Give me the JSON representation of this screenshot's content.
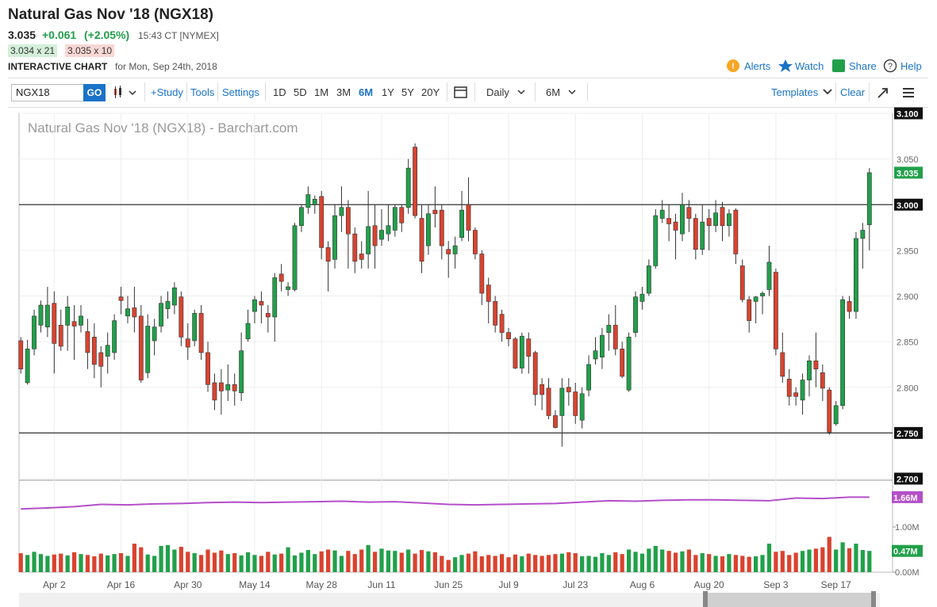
{
  "header": {
    "title": "Natural Gas Nov '18 (NGX18)",
    "last": "3.035",
    "change": "+0.061",
    "change_pct": "(+2.05%)",
    "time": "15:43 CT [NYMEX]",
    "bid": "3.034 x 21",
    "ask": "3.035 x 10",
    "chart_label": "INTERACTIVE CHART",
    "chart_date": "for Mon, Sep 24th, 2018",
    "links": [
      "Alerts",
      "Watch",
      "Share",
      "Help"
    ]
  },
  "toolbar": {
    "symbol": "NGX18",
    "go": "GO",
    "study": "+Study",
    "tools": "Tools",
    "settings": "Settings",
    "ranges": [
      "1D",
      "5D",
      "1M",
      "3M",
      "6M",
      "1Y",
      "5Y",
      "20Y"
    ],
    "interval": "Daily",
    "period": "6M",
    "templates": "Templates",
    "clear": "Clear"
  },
  "chart_data": {
    "type": "candlestick",
    "title": "Natural Gas Nov '18 (NGX18) - Barchart.com",
    "up_color": "#21a04a",
    "down_color": "#d9432f",
    "grid": true,
    "xlim": [
      -0.5,
      127.5
    ],
    "xticks": [
      {
        "value": 5,
        "label": "Apr 2"
      },
      {
        "value": 15,
        "label": "Apr 16"
      },
      {
        "value": 25,
        "label": "Apr 30"
      },
      {
        "value": 35,
        "label": "May 14"
      },
      {
        "value": 45,
        "label": "May 28"
      },
      {
        "value": 54,
        "label": "Jun 11"
      },
      {
        "value": 64,
        "label": "Jun 25"
      },
      {
        "value": 73,
        "label": "Jul 9"
      },
      {
        "value": 83,
        "label": "Jul 23"
      },
      {
        "value": 93,
        "label": "Aug 6"
      },
      {
        "value": 103,
        "label": "Aug 20"
      },
      {
        "value": 113,
        "label": "Sep 3"
      },
      {
        "value": 122,
        "label": "Sep 17"
      }
    ],
    "ylim": [
      2.7,
      3.1
    ],
    "yticks": [
      {
        "value": 3.1,
        "label": "3.100"
      },
      {
        "value": 3.05,
        "label": "3.050"
      },
      {
        "value": 3.0,
        "label": "3.000"
      },
      {
        "value": 2.95,
        "label": "2.950"
      },
      {
        "value": 2.9,
        "label": "2.900"
      },
      {
        "value": 2.85,
        "label": "2.850"
      },
      {
        "value": 2.8,
        "label": "2.800"
      },
      {
        "value": 2.75,
        "label": "2.750"
      },
      {
        "value": 2.7,
        "label": "2.700"
      }
    ],
    "hlines": [
      3.0,
      2.75
    ],
    "last_label": "3.035",
    "open": [
      2.851,
      2.805,
      2.842,
      2.868,
      2.866,
      2.892,
      2.868,
      2.868,
      2.872,
      2.868,
      2.861,
      2.855,
      2.838,
      2.834,
      2.838,
      2.899,
      2.878,
      2.887,
      2.878,
      2.816,
      2.851,
      2.867,
      2.886,
      2.89,
      2.899,
      2.853,
      2.851,
      2.881,
      2.838,
      2.805,
      2.805,
      2.797,
      2.803,
      2.794,
      2.853,
      2.883,
      2.894,
      2.881,
      2.877,
      2.924,
      2.907,
      2.907,
      2.977,
      2.997,
      3.0,
      3.009,
      2.953,
      2.94,
      2.988,
      2.997,
      2.968,
      2.946,
      2.946,
      2.977,
      2.962,
      2.968,
      2.972,
      2.997,
      2.997,
      3.063,
      2.985,
      2.955,
      2.994,
      2.994,
      2.951,
      2.946,
      2.964,
      3.0,
      2.972,
      2.946,
      2.912,
      2.894,
      2.88,
      2.86,
      2.853,
      2.821,
      2.853,
      2.838,
      2.803,
      2.799,
      2.769,
      2.769,
      2.8,
      2.795,
      2.764,
      2.797,
      2.831,
      2.833,
      2.86,
      2.868,
      2.842,
      2.797,
      2.86,
      2.894,
      2.903,
      2.933,
      2.985,
      2.985,
      2.981,
      2.968,
      2.997,
      2.985,
      2.951,
      2.985,
      2.977,
      2.997,
      2.977,
      2.994,
      2.933,
      2.896,
      2.894,
      2.9,
      2.907,
      2.926,
      2.838,
      2.809,
      2.794,
      2.786,
      2.808,
      2.829,
      2.816,
      2.797,
      2.76,
      2.78,
      2.894,
      2.883,
      2.963,
      2.978
    ],
    "high": [
      2.855,
      2.852,
      2.885,
      2.895,
      2.91,
      2.905,
      2.885,
      2.9,
      2.89,
      2.89,
      2.875,
      2.87,
      2.845,
      2.86,
      2.88,
      2.91,
      2.9,
      2.91,
      2.89,
      2.88,
      2.875,
      2.9,
      2.905,
      2.915,
      2.905,
      2.87,
      2.885,
      2.89,
      2.85,
      2.815,
      2.82,
      2.825,
      2.815,
      2.86,
      2.885,
      2.9,
      2.905,
      2.89,
      2.925,
      2.935,
      2.915,
      2.98,
      3.0,
      3.02,
      3.01,
      3.015,
      2.96,
      3.0,
      3.02,
      3.005,
      2.975,
      2.96,
      3.015,
      3.0,
      2.995,
      3.0,
      3.0,
      3.0,
      3.05,
      3.067,
      3.0,
      3.0,
      3.02,
      3.0,
      2.96,
      2.965,
      3.015,
      3.03,
      2.975,
      2.95,
      2.92,
      2.9,
      2.885,
      2.865,
      2.855,
      2.86,
      2.86,
      2.84,
      2.81,
      2.81,
      2.775,
      2.81,
      2.81,
      2.805,
      2.8,
      2.835,
      2.855,
      2.865,
      2.88,
      2.89,
      2.85,
      2.86,
      2.905,
      2.91,
      2.94,
      2.995,
      3.005,
      3.0,
      2.99,
      3.013,
      3.005,
      2.99,
      3.0,
      2.995,
      3.005,
      3.003,
      2.995,
      2.996,
      2.94,
      2.9,
      2.9,
      2.905,
      2.955,
      2.93,
      2.86,
      2.82,
      2.8,
      2.815,
      2.835,
      2.86,
      2.825,
      2.8,
      2.785,
      2.9,
      2.9,
      2.97,
      2.98,
      3.04
    ],
    "low": [
      2.815,
      2.803,
      2.835,
      2.86,
      2.855,
      2.815,
      2.84,
      2.84,
      2.83,
      2.86,
      2.82,
      2.81,
      2.8,
      2.815,
      2.83,
      2.88,
      2.87,
      2.86,
      2.805,
      2.81,
      2.835,
      2.86,
      2.875,
      2.88,
      2.845,
      2.83,
      2.845,
      2.83,
      2.795,
      2.775,
      2.77,
      2.785,
      2.78,
      2.785,
      2.85,
      2.87,
      2.87,
      2.86,
      2.85,
      2.905,
      2.9,
      2.905,
      2.97,
      2.99,
      2.99,
      2.94,
      2.905,
      2.93,
      2.97,
      2.93,
      2.925,
      2.93,
      2.93,
      2.93,
      2.955,
      2.96,
      2.965,
      2.97,
      2.99,
      2.985,
      2.925,
      2.945,
      2.975,
      2.94,
      2.92,
      2.93,
      2.96,
      2.96,
      2.94,
      2.89,
      2.87,
      2.86,
      2.85,
      2.845,
      2.82,
      2.815,
      2.815,
      2.78,
      2.775,
      2.765,
      2.755,
      2.735,
      2.78,
      2.76,
      2.755,
      2.79,
      2.825,
      2.82,
      2.84,
      2.835,
      2.81,
      2.795,
      2.855,
      2.885,
      2.9,
      2.93,
      2.98,
      2.96,
      2.94,
      2.96,
      2.97,
      2.94,
      2.945,
      2.95,
      2.97,
      2.96,
      2.965,
      2.935,
      2.893,
      2.86,
      2.87,
      2.88,
      2.9,
      2.835,
      2.805,
      2.78,
      2.78,
      2.77,
      2.79,
      2.8,
      2.785,
      2.748,
      2.758,
      2.776,
      2.875,
      2.875,
      2.93,
      2.95
    ],
    "close": [
      2.82,
      2.842,
      2.878,
      2.89,
      2.89,
      2.848,
      2.845,
      2.888,
      2.867,
      2.878,
      2.838,
      2.825,
      2.823,
      2.846,
      2.873,
      2.895,
      2.886,
      2.877,
      2.808,
      2.867,
      2.866,
      2.892,
      2.894,
      2.909,
      2.855,
      2.844,
      2.881,
      2.838,
      2.803,
      2.786,
      2.796,
      2.803,
      2.796,
      2.84,
      2.87,
      2.896,
      2.89,
      2.877,
      2.92,
      2.916,
      2.91,
      2.977,
      2.997,
      3.011,
      3.006,
      2.953,
      2.938,
      2.988,
      2.997,
      2.968,
      2.938,
      2.94,
      2.976,
      2.955,
      2.972,
      2.977,
      2.997,
      2.98,
      3.04,
      2.988,
      2.938,
      2.99,
      2.99,
      2.955,
      2.946,
      2.955,
      2.994,
      2.972,
      2.946,
      2.903,
      2.894,
      2.868,
      2.86,
      2.853,
      2.821,
      2.856,
      2.834,
      2.792,
      2.792,
      2.769,
      2.756,
      2.799,
      2.795,
      2.769,
      2.793,
      2.825,
      2.84,
      2.857,
      2.868,
      2.842,
      2.812,
      2.855,
      2.899,
      2.902,
      2.933,
      2.988,
      2.994,
      2.979,
      2.972,
      3.0,
      2.985,
      2.951,
      2.981,
      2.977,
      2.991,
      2.977,
      2.99,
      2.946,
      2.896,
      2.873,
      2.899,
      2.903,
      2.937,
      2.842,
      2.812,
      2.79,
      2.79,
      2.808,
      2.829,
      2.82,
      2.799,
      2.751,
      2.78,
      2.896,
      2.883,
      2.963,
      2.972,
      3.035
    ],
    "volume": {
      "ylim": [
        0,
        2.035
      ],
      "yticks": [
        {
          "value": 1,
          "label": "1.00M"
        },
        {
          "value": 0,
          "label": "0.00M"
        }
      ],
      "last_label": "0.47M",
      "values": [
        0.42,
        0.38,
        0.45,
        0.4,
        0.36,
        0.39,
        0.41,
        0.37,
        0.44,
        0.4,
        0.38,
        0.35,
        0.41,
        0.37,
        0.4,
        0.42,
        0.36,
        0.63,
        0.55,
        0.39,
        0.36,
        0.58,
        0.6,
        0.5,
        0.56,
        0.45,
        0.42,
        0.38,
        0.5,
        0.43,
        0.48,
        0.4,
        0.42,
        0.37,
        0.44,
        0.38,
        0.36,
        0.45,
        0.39,
        0.41,
        0.55,
        0.37,
        0.43,
        0.49,
        0.4,
        0.46,
        0.5,
        0.48,
        0.36,
        0.47,
        0.4,
        0.5,
        0.6,
        0.45,
        0.52,
        0.48,
        0.47,
        0.43,
        0.5,
        0.41,
        0.49,
        0.46,
        0.44,
        0.36,
        0.27,
        0.33,
        0.38,
        0.41,
        0.46,
        0.35,
        0.38,
        0.36,
        0.4,
        0.33,
        0.39,
        0.35,
        0.41,
        0.38,
        0.36,
        0.38,
        0.4,
        0.41,
        0.44,
        0.42,
        0.35,
        0.36,
        0.34,
        0.42,
        0.38,
        0.44,
        0.4,
        0.5,
        0.45,
        0.41,
        0.52,
        0.58,
        0.5,
        0.47,
        0.43,
        0.46,
        0.5,
        0.38,
        0.42,
        0.4,
        0.36,
        0.35,
        0.4,
        0.38,
        0.36,
        0.34,
        0.35,
        0.38,
        0.63,
        0.45,
        0.47,
        0.38,
        0.43,
        0.47,
        0.5,
        0.52,
        0.55,
        0.78,
        0.5,
        0.66,
        0.53,
        0.63,
        0.49,
        0.47
      ]
    },
    "open_interest": {
      "color": "#b44fc8",
      "last_label": "1.66M",
      "x": [
        0,
        4,
        8,
        12,
        16,
        20,
        24,
        28,
        32,
        36,
        40,
        44,
        48,
        52,
        56,
        60,
        64,
        68,
        72,
        76,
        80,
        84,
        88,
        92,
        96,
        100,
        104,
        108,
        112,
        116,
        120,
        124,
        127
      ],
      "values": [
        1.4,
        1.42,
        1.45,
        1.5,
        1.49,
        1.51,
        1.52,
        1.54,
        1.55,
        1.54,
        1.55,
        1.56,
        1.57,
        1.55,
        1.56,
        1.53,
        1.5,
        1.49,
        1.5,
        1.51,
        1.52,
        1.55,
        1.58,
        1.57,
        1.59,
        1.6,
        1.6,
        1.59,
        1.58,
        1.64,
        1.63,
        1.66,
        1.66
      ]
    }
  }
}
